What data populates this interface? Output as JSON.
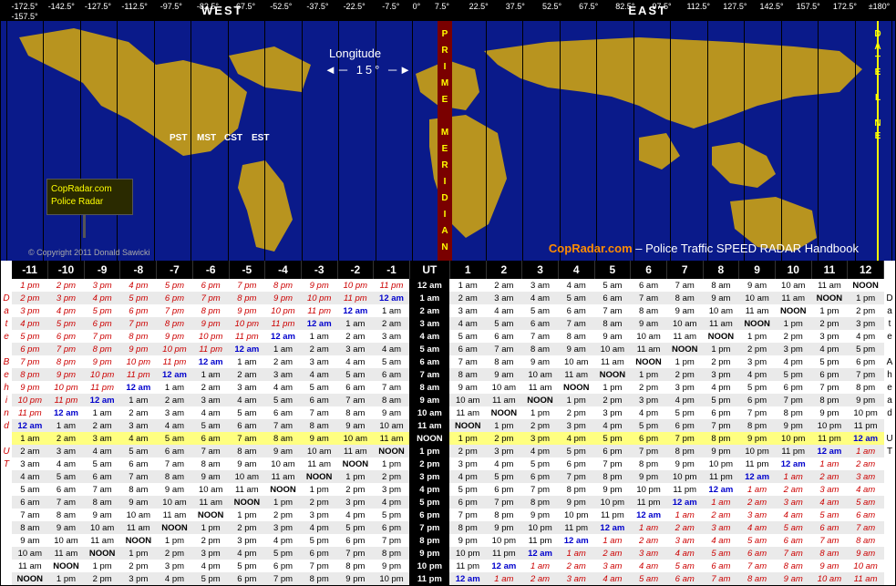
{
  "header": {
    "west_label": "WEST",
    "east_label": "EAST",
    "longitudes_west": [
      "-172.5°\n-157.5°",
      "-142.5°",
      "-127.5°",
      "-112.5°",
      "-97.5°",
      "-82.5°",
      "-67.5°",
      "-52.5°",
      "-37.5°",
      "-22.5°",
      "-7.5°"
    ],
    "longitudes_east": [
      "7.5°",
      "22.5°",
      "37.5°",
      "52.5°",
      "67.5°",
      "82.5°",
      "97.5°",
      "112.5°",
      "127.5°",
      "142.5°",
      "157.5°",
      "172.5°"
    ],
    "zero": "0°",
    "end": "±180°",
    "lon_label": "Longitude",
    "lon_step": "◄─  15°  ─►",
    "prime": "PRIME MERIDIAN",
    "dateline": "DATE LINE",
    "us_tz": [
      "PST",
      "MST",
      "CST",
      "EST"
    ],
    "sign1": "CopRadar.com",
    "sign2": "Police   Radar",
    "copyright": "© Copyright 2011 Donald Sawicki",
    "handbook_brand": "CopRadar.com",
    "handbook_text": " – Police Traffic SPEED RADAR Handbook"
  },
  "side": {
    "left": "Date Behind UT",
    "right": "Date Ahead UT"
  },
  "offsets_west": [
    -11,
    -10,
    -9,
    -8,
    -7,
    -6,
    -5,
    -4,
    -3,
    -2,
    -1
  ],
  "offsets_east": [
    1,
    2,
    3,
    4,
    5,
    6,
    7,
    8,
    9,
    10,
    11,
    12
  ],
  "ut_label": "UT",
  "rows": [
    {
      "ut": "12 am",
      "w": [
        "1 pm",
        "2 pm",
        "3 pm",
        "4 pm",
        "5 pm",
        "6 pm",
        "7 pm",
        "8 pm",
        "9 pm",
        "10 pm",
        "11 pm"
      ],
      "e": [
        "1 am",
        "2 am",
        "3 am",
        "4 am",
        "5 am",
        "6 am",
        "7 am",
        "8 am",
        "9 am",
        "10 am",
        "11 am",
        "NOON"
      ]
    },
    {
      "ut": "1 am",
      "w": [
        "2 pm",
        "3 pm",
        "4 pm",
        "5 pm",
        "6 pm",
        "7 pm",
        "8 pm",
        "9 pm",
        "10 pm",
        "11 pm",
        "12 am"
      ],
      "e": [
        "2 am",
        "3 am",
        "4 am",
        "5 am",
        "6 am",
        "7 am",
        "8 am",
        "9 am",
        "10 am",
        "11 am",
        "NOON",
        "1 pm"
      ]
    },
    {
      "ut": "2 am",
      "w": [
        "3 pm",
        "4 pm",
        "5 pm",
        "6 pm",
        "7 pm",
        "8 pm",
        "9 pm",
        "10 pm",
        "11 pm",
        "12 am",
        "1 am"
      ],
      "e": [
        "3 am",
        "4 am",
        "5 am",
        "6 am",
        "7 am",
        "8 am",
        "9 am",
        "10 am",
        "11 am",
        "NOON",
        "1 pm",
        "2 pm"
      ]
    },
    {
      "ut": "3 am",
      "w": [
        "4 pm",
        "5 pm",
        "6 pm",
        "7 pm",
        "8 pm",
        "9 pm",
        "10 pm",
        "11 pm",
        "12 am",
        "1 am",
        "2 am"
      ],
      "e": [
        "4 am",
        "5 am",
        "6 am",
        "7 am",
        "8 am",
        "9 am",
        "10 am",
        "11 am",
        "NOON",
        "1 pm",
        "2 pm",
        "3 pm"
      ]
    },
    {
      "ut": "4 am",
      "w": [
        "5 pm",
        "6 pm",
        "7 pm",
        "8 pm",
        "9 pm",
        "10 pm",
        "11 pm",
        "12 am",
        "1 am",
        "2 am",
        "3 am"
      ],
      "e": [
        "5 am",
        "6 am",
        "7 am",
        "8 am",
        "9 am",
        "10 am",
        "11 am",
        "NOON",
        "1 pm",
        "2 pm",
        "3 pm",
        "4 pm"
      ]
    },
    {
      "ut": "5 am",
      "w": [
        "6 pm",
        "7 pm",
        "8 pm",
        "9 pm",
        "10 pm",
        "11 pm",
        "12 am",
        "1 am",
        "2 am",
        "3 am",
        "4 am"
      ],
      "e": [
        "6 am",
        "7 am",
        "8 am",
        "9 am",
        "10 am",
        "11 am",
        "NOON",
        "1 pm",
        "2 pm",
        "3 pm",
        "4 pm",
        "5 pm"
      ]
    },
    {
      "ut": "6 am",
      "w": [
        "7 pm",
        "8 pm",
        "9 pm",
        "10 pm",
        "11 pm",
        "12 am",
        "1 am",
        "2 am",
        "3 am",
        "4 am",
        "5 am"
      ],
      "e": [
        "7 am",
        "8 am",
        "9 am",
        "10 am",
        "11 am",
        "NOON",
        "1 pm",
        "2 pm",
        "3 pm",
        "4 pm",
        "5 pm",
        "6 pm"
      ]
    },
    {
      "ut": "7 am",
      "w": [
        "8 pm",
        "9 pm",
        "10 pm",
        "11 pm",
        "12 am",
        "1 am",
        "2 am",
        "3 am",
        "4 am",
        "5 am",
        "6 am"
      ],
      "e": [
        "8 am",
        "9 am",
        "10 am",
        "11 am",
        "NOON",
        "1 pm",
        "2 pm",
        "3 pm",
        "4 pm",
        "5 pm",
        "6 pm",
        "7 pm"
      ]
    },
    {
      "ut": "8 am",
      "w": [
        "9 pm",
        "10 pm",
        "11 pm",
        "12 am",
        "1 am",
        "2 am",
        "3 am",
        "4 am",
        "5 am",
        "6 am",
        "7 am"
      ],
      "e": [
        "9 am",
        "10 am",
        "11 am",
        "NOON",
        "1 pm",
        "2 pm",
        "3 pm",
        "4 pm",
        "5 pm",
        "6 pm",
        "7 pm",
        "8 pm"
      ]
    },
    {
      "ut": "9 am",
      "w": [
        "10 pm",
        "11 pm",
        "12 am",
        "1 am",
        "2 am",
        "3 am",
        "4 am",
        "5 am",
        "6 am",
        "7 am",
        "8 am"
      ],
      "e": [
        "10 am",
        "11 am",
        "NOON",
        "1 pm",
        "2 pm",
        "3 pm",
        "4 pm",
        "5 pm",
        "6 pm",
        "7 pm",
        "8 pm",
        "9 pm"
      ]
    },
    {
      "ut": "10 am",
      "w": [
        "11 pm",
        "12 am",
        "1 am",
        "2 am",
        "3 am",
        "4 am",
        "5 am",
        "6 am",
        "7 am",
        "8 am",
        "9 am"
      ],
      "e": [
        "11 am",
        "NOON",
        "1 pm",
        "2 pm",
        "3 pm",
        "4 pm",
        "5 pm",
        "6 pm",
        "7 pm",
        "8 pm",
        "9 pm",
        "10 pm"
      ]
    },
    {
      "ut": "11 am",
      "w": [
        "12 am",
        "1 am",
        "2 am",
        "3 am",
        "4 am",
        "5 am",
        "6 am",
        "7 am",
        "8 am",
        "9 am",
        "10 am"
      ],
      "e": [
        "NOON",
        "1 pm",
        "2 pm",
        "3 pm",
        "4 pm",
        "5 pm",
        "6 pm",
        "7 pm",
        "8 pm",
        "9 pm",
        "10 pm",
        "11 pm"
      ]
    },
    {
      "ut": "NOON",
      "noon": true,
      "w": [
        "1 am",
        "2 am",
        "3 am",
        "4 am",
        "5 am",
        "6 am",
        "7 am",
        "8 am",
        "9 am",
        "10 am",
        "11 am"
      ],
      "e": [
        "1 pm",
        "2 pm",
        "3 pm",
        "4 pm",
        "5 pm",
        "6 pm",
        "7 pm",
        "8 pm",
        "9 pm",
        "10 pm",
        "11 pm",
        "12 am"
      ]
    },
    {
      "ut": "1 pm",
      "w": [
        "2 am",
        "3 am",
        "4 am",
        "5 am",
        "6 am",
        "7 am",
        "8 am",
        "9 am",
        "10 am",
        "11 am",
        "NOON"
      ],
      "e": [
        "2 pm",
        "3 pm",
        "4 pm",
        "5 pm",
        "6 pm",
        "7 pm",
        "8 pm",
        "9 pm",
        "10 pm",
        "11 pm",
        "12 am",
        "1 am"
      ]
    },
    {
      "ut": "2 pm",
      "w": [
        "3 am",
        "4 am",
        "5 am",
        "6 am",
        "7 am",
        "8 am",
        "9 am",
        "10 am",
        "11 am",
        "NOON",
        "1 pm"
      ],
      "e": [
        "3 pm",
        "4 pm",
        "5 pm",
        "6 pm",
        "7 pm",
        "8 pm",
        "9 pm",
        "10 pm",
        "11 pm",
        "12 am",
        "1 am",
        "2 am"
      ]
    },
    {
      "ut": "3 pm",
      "w": [
        "4 am",
        "5 am",
        "6 am",
        "7 am",
        "8 am",
        "9 am",
        "10 am",
        "11 am",
        "NOON",
        "1 pm",
        "2 pm"
      ],
      "e": [
        "4 pm",
        "5 pm",
        "6 pm",
        "7 pm",
        "8 pm",
        "9 pm",
        "10 pm",
        "11 pm",
        "12 am",
        "1 am",
        "2 am",
        "3 am"
      ]
    },
    {
      "ut": "4 pm",
      "w": [
        "5 am",
        "6 am",
        "7 am",
        "8 am",
        "9 am",
        "10 am",
        "11 am",
        "NOON",
        "1 pm",
        "2 pm",
        "3 pm"
      ],
      "e": [
        "5 pm",
        "6 pm",
        "7 pm",
        "8 pm",
        "9 pm",
        "10 pm",
        "11 pm",
        "12 am",
        "1 am",
        "2 am",
        "3 am",
        "4 am"
      ]
    },
    {
      "ut": "5 pm",
      "w": [
        "6 am",
        "7 am",
        "8 am",
        "9 am",
        "10 am",
        "11 am",
        "NOON",
        "1 pm",
        "2 pm",
        "3 pm",
        "4 pm"
      ],
      "e": [
        "6 pm",
        "7 pm",
        "8 pm",
        "9 pm",
        "10 pm",
        "11 pm",
        "12 am",
        "1 am",
        "2 am",
        "3 am",
        "4 am",
        "5 am"
      ]
    },
    {
      "ut": "6 pm",
      "w": [
        "7 am",
        "8 am",
        "9 am",
        "10 am",
        "11 am",
        "NOON",
        "1 pm",
        "2 pm",
        "3 pm",
        "4 pm",
        "5 pm"
      ],
      "e": [
        "7 pm",
        "8 pm",
        "9 pm",
        "10 pm",
        "11 pm",
        "12 am",
        "1 am",
        "2 am",
        "3 am",
        "4 am",
        "5 am",
        "6 am"
      ]
    },
    {
      "ut": "7 pm",
      "w": [
        "8 am",
        "9 am",
        "10 am",
        "11 am",
        "NOON",
        "1 pm",
        "2 pm",
        "3 pm",
        "4 pm",
        "5 pm",
        "6 pm"
      ],
      "e": [
        "8 pm",
        "9 pm",
        "10 pm",
        "11 pm",
        "12 am",
        "1 am",
        "2 am",
        "3 am",
        "4 am",
        "5 am",
        "6 am",
        "7 am"
      ]
    },
    {
      "ut": "8 pm",
      "w": [
        "9 am",
        "10 am",
        "11 am",
        "NOON",
        "1 pm",
        "2 pm",
        "3 pm",
        "4 pm",
        "5 pm",
        "6 pm",
        "7 pm"
      ],
      "e": [
        "9 pm",
        "10 pm",
        "11 pm",
        "12 am",
        "1 am",
        "2 am",
        "3 am",
        "4 am",
        "5 am",
        "6 am",
        "7 am",
        "8 am"
      ]
    },
    {
      "ut": "9 pm",
      "w": [
        "10 am",
        "11 am",
        "NOON",
        "1 pm",
        "2 pm",
        "3 pm",
        "4 pm",
        "5 pm",
        "6 pm",
        "7 pm",
        "8 pm"
      ],
      "e": [
        "10 pm",
        "11 pm",
        "12 am",
        "1 am",
        "2 am",
        "3 am",
        "4 am",
        "5 am",
        "6 am",
        "7 am",
        "8 am",
        "9 am"
      ]
    },
    {
      "ut": "10 pm",
      "w": [
        "11 am",
        "NOON",
        "1 pm",
        "2 pm",
        "3 pm",
        "4 pm",
        "5 pm",
        "6 pm",
        "7 pm",
        "8 pm",
        "9 pm"
      ],
      "e": [
        "11 pm",
        "12 am",
        "1 am",
        "2 am",
        "3 am",
        "4 am",
        "5 am",
        "6 am",
        "7 am",
        "8 am",
        "9 am",
        "10 am"
      ]
    },
    {
      "ut": "11 pm",
      "w": [
        "NOON",
        "1 pm",
        "2 pm",
        "3 pm",
        "4 pm",
        "5 pm",
        "6 pm",
        "7 pm",
        "8 pm",
        "9 pm",
        "10 pm"
      ],
      "e": [
        "12 am",
        "1 am",
        "2 am",
        "3 am",
        "4 am",
        "5 am",
        "6 am",
        "7 am",
        "8 am",
        "9 am",
        "10 am",
        "11 am"
      ]
    }
  ],
  "colors": {
    "land": "#b8941f",
    "ocean": "#0a1a8a",
    "red": "#c00",
    "blue": "#00c",
    "highlight": "#ffff80",
    "black": "#000"
  }
}
